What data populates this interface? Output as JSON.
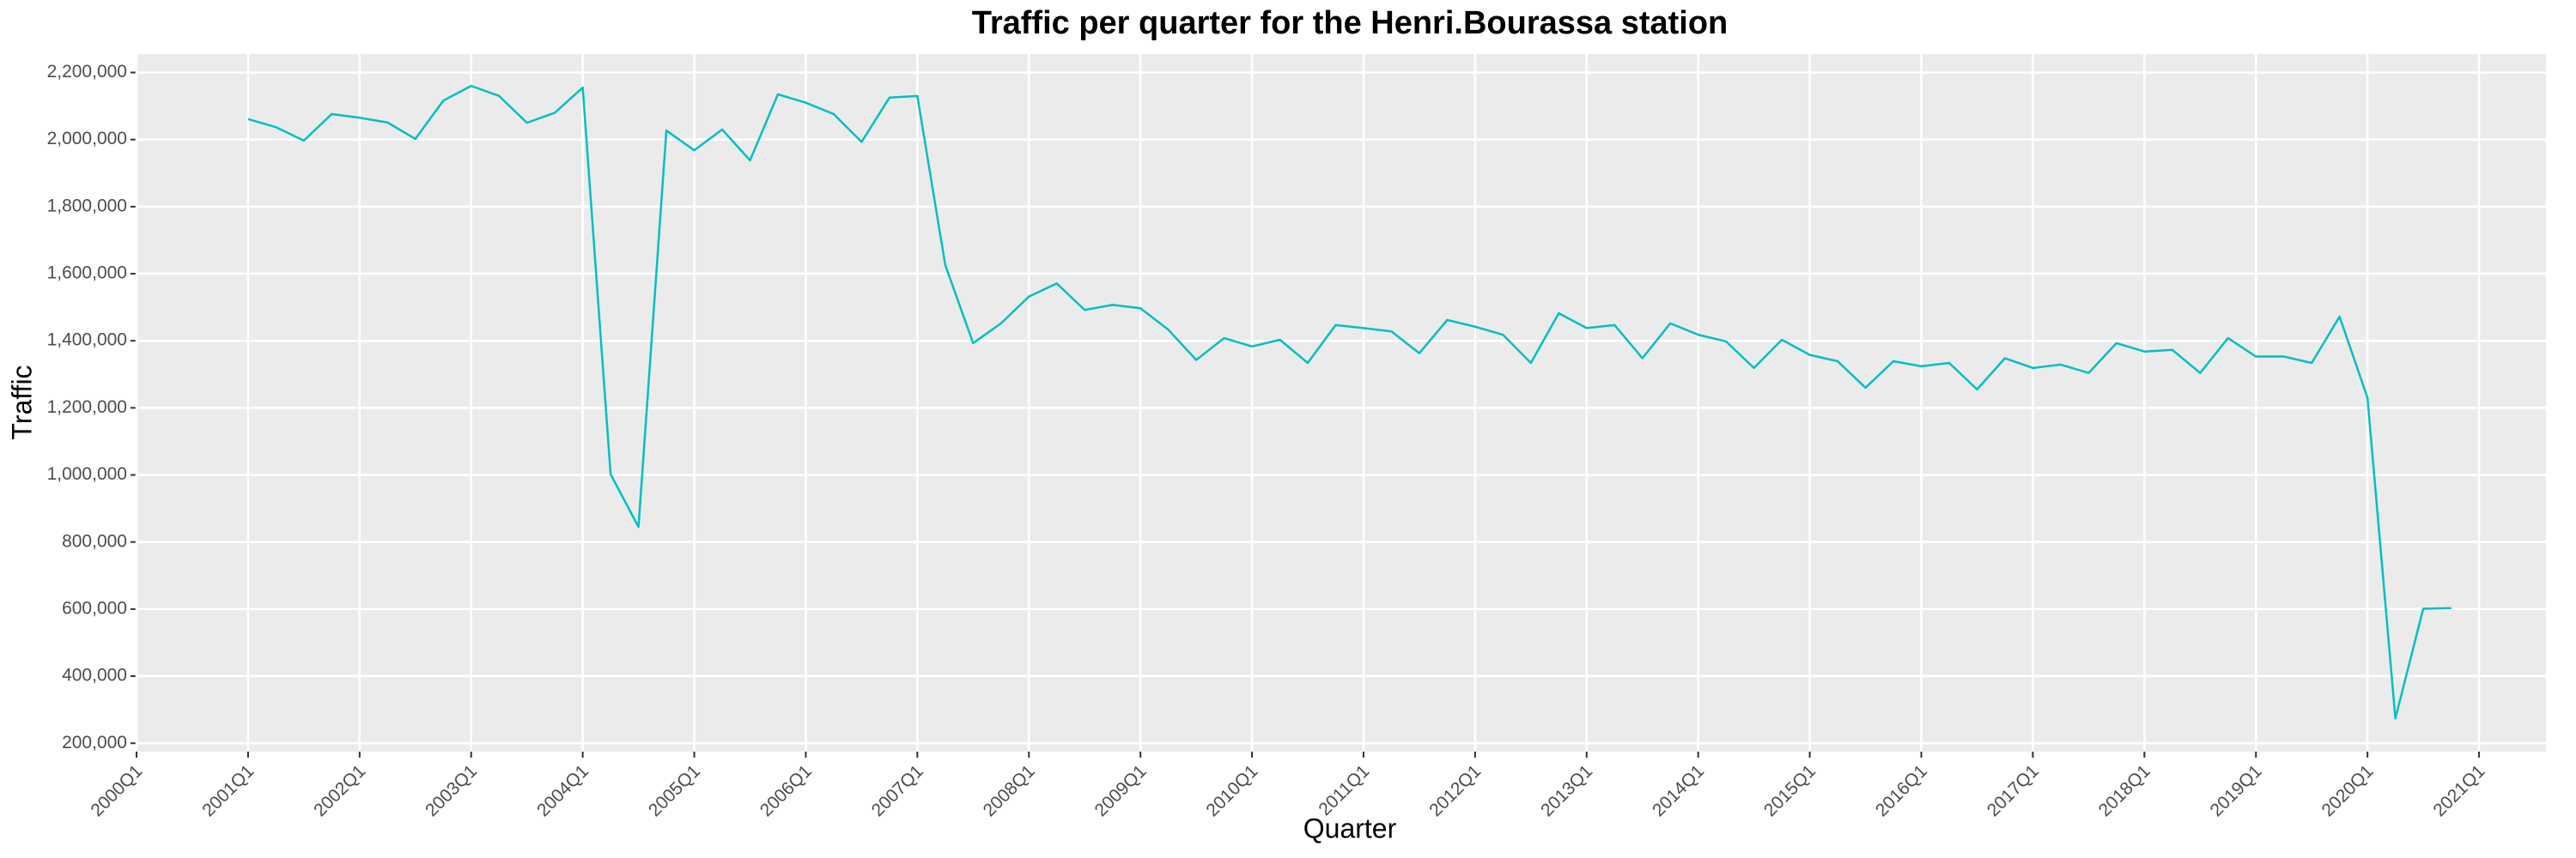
{
  "chart_data": {
    "type": "line",
    "title": "Traffic per quarter for the Henri.Bourassa station",
    "x_label": "Quarter",
    "y_label": "Traffic",
    "color": "#00BFC4",
    "grid": true,
    "x": [
      2001,
      2001.25,
      2001.5,
      2001.75,
      2002,
      2002.25,
      2002.5,
      2002.75,
      2003,
      2003.25,
      2003.5,
      2003.75,
      2004,
      2004.25,
      2004.5,
      2004.75,
      2005,
      2005.25,
      2005.5,
      2005.75,
      2006,
      2006.25,
      2006.5,
      2006.75,
      2007,
      2007.25,
      2007.5,
      2007.75,
      2008,
      2008.25,
      2008.5,
      2008.75,
      2009,
      2009.25,
      2009.5,
      2009.75,
      2010,
      2010.25,
      2010.5,
      2010.75,
      2011,
      2011.25,
      2011.5,
      2011.75,
      2012,
      2012.25,
      2012.5,
      2012.75,
      2013,
      2013.25,
      2013.5,
      2013.75,
      2014,
      2014.25,
      2014.5,
      2014.75,
      2015,
      2015.25,
      2015.5,
      2015.75,
      2016,
      2016.25,
      2016.5,
      2016.75,
      2017,
      2017.25,
      2017.5,
      2017.75,
      2018,
      2018.25,
      2018.5,
      2018.75,
      2019,
      2019.25,
      2019.5,
      2019.75,
      2020,
      2020.25,
      2020.5,
      2020.75
    ],
    "values": [
      2061000,
      2037000,
      1997000,
      2076000,
      2065000,
      2051000,
      2002000,
      2116000,
      2160000,
      2130000,
      2050000,
      2080000,
      2155000,
      1002000,
      845000,
      2027000,
      1968000,
      2030000,
      1938000,
      2135000,
      2110000,
      2076000,
      1993000,
      2125000,
      2130000,
      1626000,
      1393000,
      1452000,
      1532000,
      1571000,
      1492000,
      1507000,
      1497000,
      1433000,
      1343000,
      1408000,
      1383000,
      1403000,
      1334000,
      1447000,
      1438000,
      1428000,
      1363000,
      1462000,
      1442000,
      1418000,
      1334000,
      1482000,
      1438000,
      1447000,
      1348000,
      1452000,
      1418000,
      1398000,
      1319000,
      1403000,
      1358000,
      1339000,
      1260000,
      1339000,
      1324000,
      1334000,
      1255000,
      1348000,
      1319000,
      1329000,
      1304000,
      1393000,
      1368000,
      1373000,
      1304000,
      1408000,
      1353000,
      1353000,
      1334000,
      1472000,
      1230000,
      274000,
      601000,
      603000
    ],
    "xlim": [
      2000,
      2021.6
    ],
    "xticks": [
      {
        "value": 2000,
        "label": "2000Q1"
      },
      {
        "value": 2001,
        "label": "2001Q1"
      },
      {
        "value": 2002,
        "label": "2002Q1"
      },
      {
        "value": 2003,
        "label": "2003Q1"
      },
      {
        "value": 2004,
        "label": "2004Q1"
      },
      {
        "value": 2005,
        "label": "2005Q1"
      },
      {
        "value": 2006,
        "label": "2006Q1"
      },
      {
        "value": 2007,
        "label": "2007Q1"
      },
      {
        "value": 2008,
        "label": "2008Q1"
      },
      {
        "value": 2009,
        "label": "2009Q1"
      },
      {
        "value": 2010,
        "label": "2010Q1"
      },
      {
        "value": 2011,
        "label": "2011Q1"
      },
      {
        "value": 2012,
        "label": "2012Q1"
      },
      {
        "value": 2013,
        "label": "2013Q1"
      },
      {
        "value": 2014,
        "label": "2014Q1"
      },
      {
        "value": 2015,
        "label": "2015Q1"
      },
      {
        "value": 2016,
        "label": "2016Q1"
      },
      {
        "value": 2017,
        "label": "2017Q1"
      },
      {
        "value": 2018,
        "label": "2018Q1"
      },
      {
        "value": 2019,
        "label": "2019Q1"
      },
      {
        "value": 2020,
        "label": "2020Q1"
      },
      {
        "value": 2021,
        "label": "2021Q1"
      }
    ],
    "ylim": [
      175000,
      2255000
    ],
    "yticks": [
      {
        "value": 200000,
        "label": "200,000"
      },
      {
        "value": 400000,
        "label": "400,000"
      },
      {
        "value": 600000,
        "label": "600,000"
      },
      {
        "value": 800000,
        "label": "800,000"
      },
      {
        "value": 1000000,
        "label": "1,000,000"
      },
      {
        "value": 1200000,
        "label": "1,200,000"
      },
      {
        "value": 1400000,
        "label": "1,400,000"
      },
      {
        "value": 1600000,
        "label": "1,600,000"
      },
      {
        "value": 1800000,
        "label": "1,800,000"
      },
      {
        "value": 2000000,
        "label": "2,000,000"
      },
      {
        "value": 2200000,
        "label": "2,200,000"
      }
    ]
  }
}
